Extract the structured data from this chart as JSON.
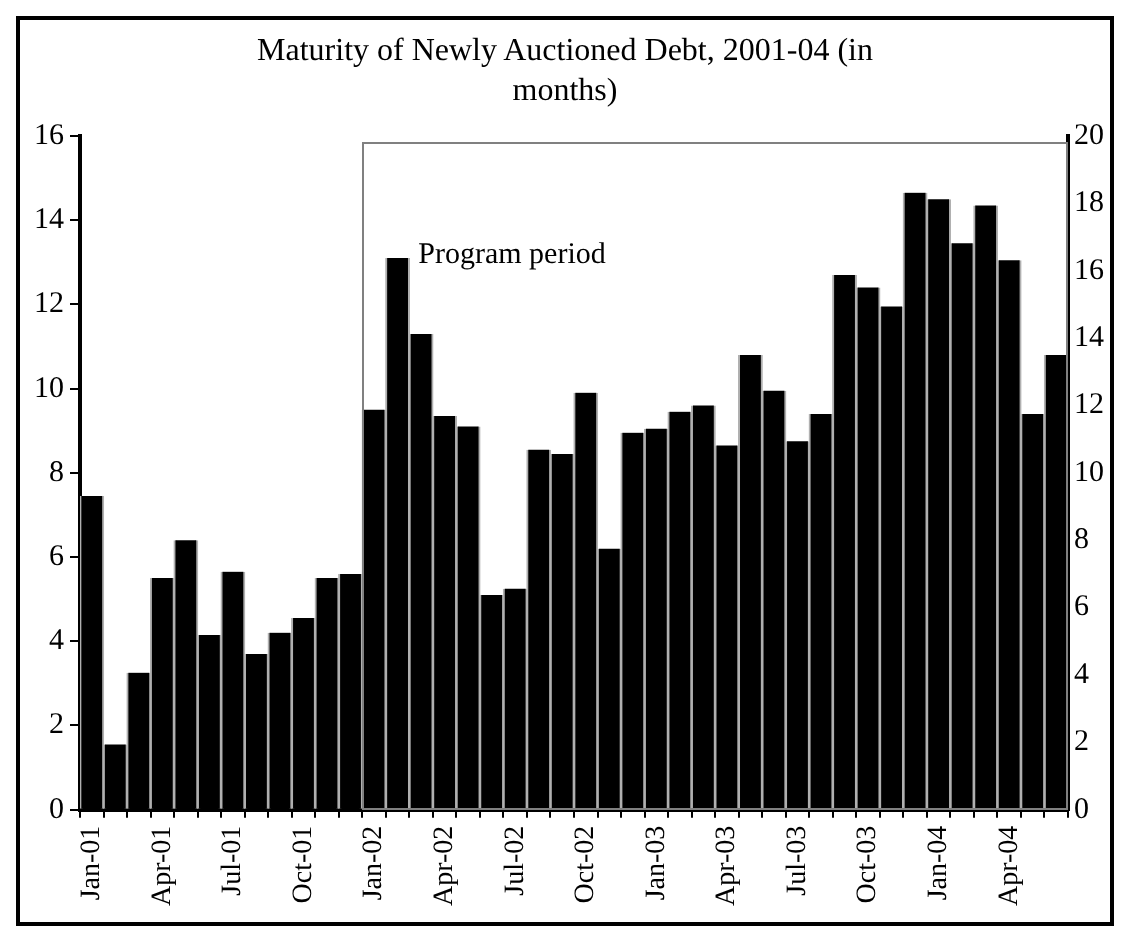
{
  "chart_data": {
    "type": "bar",
    "title": "Maturity of Newly Auctioned Debt, 2001-04 (in months)",
    "categories": [
      "Jan-01",
      null,
      null,
      "Apr-01",
      null,
      null,
      "Jul-01",
      null,
      null,
      "Oct-01",
      null,
      null,
      "Jan-02",
      null,
      null,
      "Apr-02",
      null,
      null,
      "Jul-02",
      null,
      null,
      "Oct-02",
      null,
      null,
      "Jan-03",
      null,
      null,
      "Apr-03",
      null,
      null,
      "Jul-03",
      null,
      null,
      "Oct-03",
      null,
      null,
      "Jan-04",
      null,
      null,
      "Apr-04",
      null,
      null
    ],
    "values": [
      7.45,
      1.55,
      3.25,
      5.5,
      6.4,
      4.15,
      5.65,
      3.7,
      4.2,
      4.55,
      5.5,
      5.6,
      9.5,
      13.1,
      11.3,
      9.35,
      9.1,
      5.1,
      5.25,
      8.55,
      8.45,
      9.9,
      6.2,
      8.95,
      9.05,
      9.45,
      9.6,
      8.65,
      10.8,
      9.95,
      8.75,
      9.4,
      12.7,
      12.4,
      11.95,
      14.65,
      14.5,
      13.45,
      14.35,
      13.05,
      9.4,
      10.8
    ],
    "color": "#000000",
    "ylim": [
      0,
      16
    ],
    "yticks": [
      0,
      2,
      4,
      6,
      8,
      10,
      12,
      14,
      16
    ],
    "y2lim": [
      0,
      20
    ],
    "y2ticks": [
      0,
      2,
      4,
      6,
      8,
      10,
      12,
      14,
      16,
      18,
      20
    ],
    "annotations": [
      "Program period"
    ],
    "grid": false,
    "legend": false
  }
}
